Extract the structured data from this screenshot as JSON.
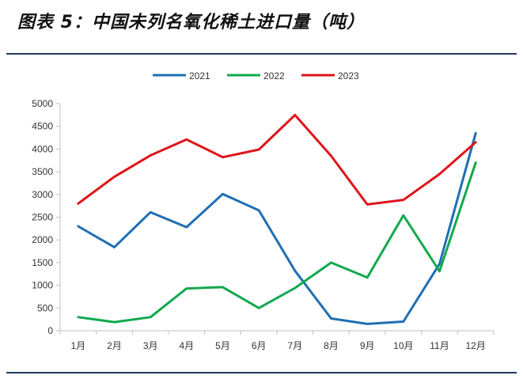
{
  "title": "图表 5：中国未列名氧化稀土进口量（吨）",
  "colors": {
    "2021": "#1f6fb4",
    "2022": "#12a84e",
    "2023": "#e0141c",
    "axis": "#bfbfbf",
    "rule": "#1f3b5e"
  },
  "chart_data": {
    "type": "line",
    "title": "图表 5：中国未列名氧化稀土进口量（吨）",
    "xlabel": "",
    "ylabel": "",
    "categories": [
      "1月",
      "2月",
      "3月",
      "4月",
      "5月",
      "6月",
      "7月",
      "8月",
      "9月",
      "10月",
      "11月",
      "12月"
    ],
    "ylim": [
      0,
      5000
    ],
    "yticks": [
      0,
      500,
      1000,
      1500,
      2000,
      2500,
      3000,
      3500,
      4000,
      4500,
      5000
    ],
    "grid": false,
    "legend": "top-center",
    "series": [
      {
        "name": "2021",
        "color": "#1f6fb4",
        "values": [
          2300,
          1840,
          2610,
          2280,
          3010,
          2650,
          1320,
          270,
          150,
          200,
          1470,
          4350
        ]
      },
      {
        "name": "2022",
        "color": "#12a84e",
        "values": [
          300,
          190,
          300,
          930,
          960,
          500,
          940,
          1500,
          1170,
          2540,
          1310,
          3700
        ]
      },
      {
        "name": "2023",
        "color": "#e0141c",
        "values": [
          2800,
          3390,
          3860,
          4210,
          3820,
          3990,
          4750,
          3850,
          2780,
          2880,
          3450,
          4150
        ]
      }
    ]
  }
}
